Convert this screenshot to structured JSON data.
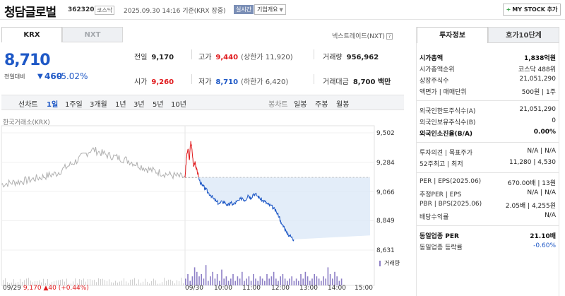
{
  "header": {
    "stock_name": "청담글로벌",
    "stock_code": "362320",
    "market_badge": "코스닥",
    "timestamp": "2025.09.30 14:16 기준(KRX 장중)",
    "realtime_badge": "실시간",
    "company_info_label": "기업개요",
    "mystock_label": "MY STOCK 추가"
  },
  "exchange_tabs": [
    "KRX",
    "NXT"
  ],
  "nextrade_link": "넥스트레이드(NXT)",
  "price": {
    "current": "8,710",
    "change_label": "전일대비",
    "change_value": "460",
    "change_pct": "-5.02%"
  },
  "quote": {
    "prev_close_label": "전일",
    "prev_close": "9,170",
    "high_label": "고가",
    "high": "9,440",
    "upper_limit": "(상한가 11,920)",
    "volume_label": "거래량",
    "volume": "956,962",
    "open_label": "시가",
    "open": "9,260",
    "low_label": "저가",
    "low": "8,710",
    "lower_limit": "(하한가 6,420)",
    "amount_label": "거래대금",
    "amount": "8,700 백만"
  },
  "period_bar": {
    "left_label": "선차트",
    "periods": [
      "1일",
      "1주일",
      "3개월",
      "1년",
      "3년",
      "5년",
      "10년"
    ],
    "selected": "1일",
    "right_label": "봉차트",
    "candles": [
      "일봉",
      "주봉",
      "월봉"
    ]
  },
  "chart_source": "한국거래소(KRX)",
  "chart_data": {
    "type": "line",
    "y_ticks": [
      "9,502",
      "9,284",
      "9,066",
      "8,849",
      "8,631"
    ],
    "ylim": [
      8631,
      9502
    ],
    "x_ticks": [
      "09/30",
      "10:00",
      "11:00",
      "12:00",
      "13:00",
      "14:00",
      "15:00"
    ],
    "prev_close": 9170,
    "prev_day_label": "09/29",
    "prev_day_close": "9,170",
    "prev_day_change": "▲40 (+0.44%)",
    "volume_label": "거래량",
    "series": [
      {
        "x": 0.0,
        "y": 9170
      },
      {
        "x": 0.05,
        "y": 9320
      },
      {
        "x": 0.1,
        "y": 9380
      },
      {
        "x": 0.15,
        "y": 9300
      },
      {
        "x": 0.2,
        "y": 9440
      },
      {
        "x": 0.25,
        "y": 9360
      },
      {
        "x": 0.3,
        "y": 9250
      },
      {
        "x": 0.35,
        "y": 9290
      },
      {
        "x": 0.4,
        "y": 9230
      },
      {
        "x": 0.45,
        "y": 9200
      },
      {
        "x": 0.5,
        "y": 9150
      },
      {
        "x": 0.6,
        "y": 9110
      },
      {
        "x": 0.7,
        "y": 9090
      },
      {
        "x": 0.8,
        "y": 9060
      },
      {
        "x": 0.9,
        "y": 9040
      },
      {
        "x": 1.0,
        "y": 9010
      },
      {
        "x": 1.1,
        "y": 8990
      },
      {
        "x": 1.2,
        "y": 8975
      },
      {
        "x": 1.3,
        "y": 8990
      },
      {
        "x": 1.4,
        "y": 8985
      },
      {
        "x": 1.5,
        "y": 8960
      },
      {
        "x": 1.6,
        "y": 8980
      },
      {
        "x": 1.7,
        "y": 8970
      },
      {
        "x": 1.8,
        "y": 8990
      },
      {
        "x": 1.9,
        "y": 9000
      },
      {
        "x": 2.0,
        "y": 9020
      },
      {
        "x": 2.1,
        "y": 9000
      },
      {
        "x": 2.2,
        "y": 9040
      },
      {
        "x": 2.3,
        "y": 9020
      },
      {
        "x": 2.4,
        "y": 9050
      },
      {
        "x": 2.5,
        "y": 9040
      },
      {
        "x": 2.6,
        "y": 9020
      },
      {
        "x": 2.7,
        "y": 9000
      },
      {
        "x": 2.8,
        "y": 8990
      },
      {
        "x": 2.9,
        "y": 8970
      },
      {
        "x": 3.0,
        "y": 8960
      },
      {
        "x": 3.1,
        "y": 8940
      },
      {
        "x": 3.2,
        "y": 8910
      },
      {
        "x": 3.3,
        "y": 8880
      },
      {
        "x": 3.35,
        "y": 8830
      },
      {
        "x": 3.45,
        "y": 8810
      },
      {
        "x": 3.55,
        "y": 8760
      },
      {
        "x": 3.65,
        "y": 8740
      },
      {
        "x": 3.75,
        "y": 8720
      },
      {
        "x": 3.8,
        "y": 8710
      }
    ],
    "volume": [
      3,
      5,
      2,
      4,
      8,
      6,
      4,
      5,
      3,
      9,
      2,
      4,
      6,
      3,
      5,
      2,
      7,
      3,
      4,
      2,
      3,
      5,
      2,
      4,
      3,
      6,
      2,
      3,
      4,
      2,
      5,
      3,
      2,
      4,
      3,
      2,
      5,
      3,
      4,
      6,
      3,
      2,
      4,
      5,
      3,
      2,
      3,
      4,
      2,
      3,
      2,
      5,
      3,
      6,
      4,
      2,
      3,
      5,
      4,
      3,
      2,
      4,
      3,
      8,
      5,
      3,
      6,
      4,
      2,
      3
    ]
  },
  "right_panel": {
    "tabs": [
      "투자정보",
      "호가10단계"
    ],
    "market_cap_label": "시가총액",
    "market_cap": "1,838억원",
    "market_cap_rank_label": "시가총액순위",
    "market_cap_rank": "코스닥 488위",
    "shares_label": "상장주식수",
    "shares": "21,051,290",
    "par_label": "액면가 | 매매단위",
    "par": "500원 | 1주",
    "foreign_limit_label": "외국인한도주식수(A)",
    "foreign_limit": "21,051,290",
    "foreign_hold_label": "외국인보유주식수(B)",
    "foreign_hold": "0",
    "foreign_ratio_label": "외국인소진율(B/A)",
    "foreign_ratio": "0.00%",
    "opinion_label": "투자의견 | 목표주가",
    "opinion": "N/A | N/A",
    "range52_label": "52주최고 | 최저",
    "range52": "11,280 | 4,530",
    "per_label": "PER | EPS(2025.06)",
    "per": "670.00배 | 13원",
    "est_per_label": "추정PER | EPS",
    "est_per": "N/A | N/A",
    "pbr_label": "PBR | BPS(2025.06)",
    "pbr": "2.05배 | 4,255원",
    "dividend_label": "배당수익률",
    "dividend": "N/A",
    "sector_per_label": "동일업종 PER",
    "sector_per": "21.10배",
    "sector_change_label": "동일업종 등락률",
    "sector_change": "-0.60%"
  },
  "colors": {
    "up": "#e0191c",
    "down": "#1e58c6",
    "pre_market_line": "#b0b0b0",
    "fill": "#dce8f7"
  }
}
